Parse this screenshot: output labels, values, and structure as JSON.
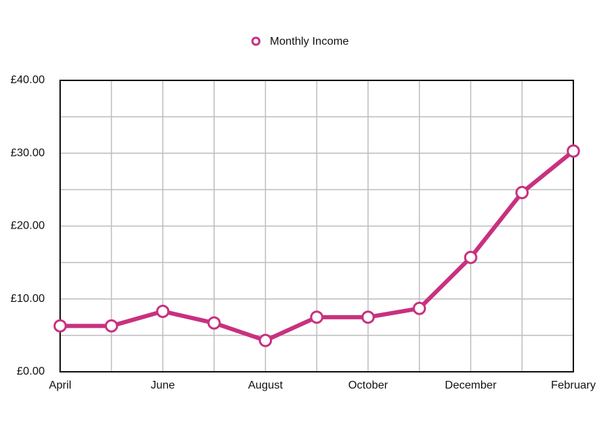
{
  "chart_data": {
    "type": "line",
    "categories": [
      "April",
      null,
      "June",
      null,
      "August",
      null,
      "October",
      null,
      "December",
      null,
      "February"
    ],
    "series": [
      {
        "name": "Monthly Income",
        "color": "#c8317f",
        "values": [
          6.3,
          6.3,
          8.3,
          6.7,
          4.3,
          7.5,
          7.5,
          8.7,
          15.7,
          24.6,
          30.3
        ]
      }
    ],
    "ylim": [
      0,
      40
    ],
    "yticks": [
      {
        "value": 0,
        "label": "£0.00"
      },
      {
        "value": 10,
        "label": "£10.00"
      },
      {
        "value": 20,
        "label": "£20.00"
      },
      {
        "value": 30,
        "label": "£30.00"
      },
      {
        "value": 40,
        "label": "£40.00"
      }
    ],
    "minor_yticks": [
      5,
      15,
      25,
      35
    ],
    "grid": true,
    "legend": "top"
  }
}
